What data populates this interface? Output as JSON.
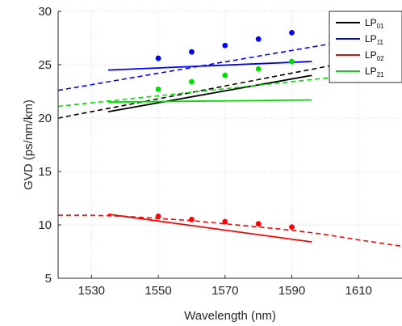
{
  "chart_data": {
    "type": "line",
    "title": "",
    "xlabel": "Wavelength (nm)",
    "ylabel": "GVD (ps/nm/km)",
    "xlim": [
      1520,
      1623
    ],
    "ylim": [
      5,
      30
    ],
    "xticks": [
      1530,
      1550,
      1570,
      1590,
      1610
    ],
    "yticks": [
      5,
      10,
      15,
      20,
      25,
      30
    ],
    "grid": true,
    "legend_position": "top-right",
    "legend": [
      {
        "base": "LP",
        "sub": "01",
        "color": "#000000"
      },
      {
        "base": "LP",
        "sub": "11",
        "color": "#0000ff"
      },
      {
        "base": "LP",
        "sub": "02",
        "color": "#ff0000"
      },
      {
        "base": "LP",
        "sub": "21",
        "color": "#00dd00"
      }
    ],
    "series": [
      {
        "name": "LP01",
        "color": "#000000",
        "solid": {
          "x": [
            1535,
            1596
          ],
          "y": [
            20.6,
            24.0
          ]
        },
        "dashed": {
          "x": [
            1520,
            1623
          ],
          "y": [
            20.0,
            26.2
          ]
        }
      },
      {
        "name": "LP11",
        "color": "#0000ff",
        "solid": {
          "x": [
            1535,
            1596
          ],
          "y": [
            24.5,
            25.3
          ]
        },
        "dashed": {
          "x": [
            1520,
            1623
          ],
          "y": [
            22.6,
            28.1
          ]
        },
        "points": {
          "x": [
            1550,
            1560,
            1570,
            1580,
            1590
          ],
          "y": [
            25.6,
            26.2,
            26.8,
            27.4,
            28.0
          ]
        }
      },
      {
        "name": "LP02",
        "color": "#ff0000",
        "solid": {
          "x": [
            1535,
            1596
          ],
          "y": [
            11.0,
            8.4
          ]
        },
        "dashed": {
          "x": [
            1520,
            1530,
            1540,
            1550,
            1560,
            1570,
            1580,
            1590,
            1600,
            1610,
            1623
          ],
          "y": [
            10.9,
            10.9,
            10.8,
            10.6,
            10.4,
            10.1,
            9.8,
            9.5,
            9.1,
            8.6,
            8.0
          ]
        },
        "points": {
          "x": [
            1550,
            1560,
            1570,
            1580,
            1590
          ],
          "y": [
            10.8,
            10.5,
            10.3,
            10.1,
            9.8
          ]
        }
      },
      {
        "name": "LP21",
        "color": "#00dd00",
        "solid": {
          "x": [
            1535,
            1596
          ],
          "y": [
            21.5,
            21.7
          ]
        },
        "dashed": {
          "x": [
            1520,
            1623
          ],
          "y": [
            21.1,
            24.5
          ]
        },
        "points": {
          "x": [
            1550,
            1560,
            1570,
            1580,
            1590
          ],
          "y": [
            22.7,
            23.4,
            24.0,
            24.6,
            25.3
          ]
        }
      }
    ]
  }
}
